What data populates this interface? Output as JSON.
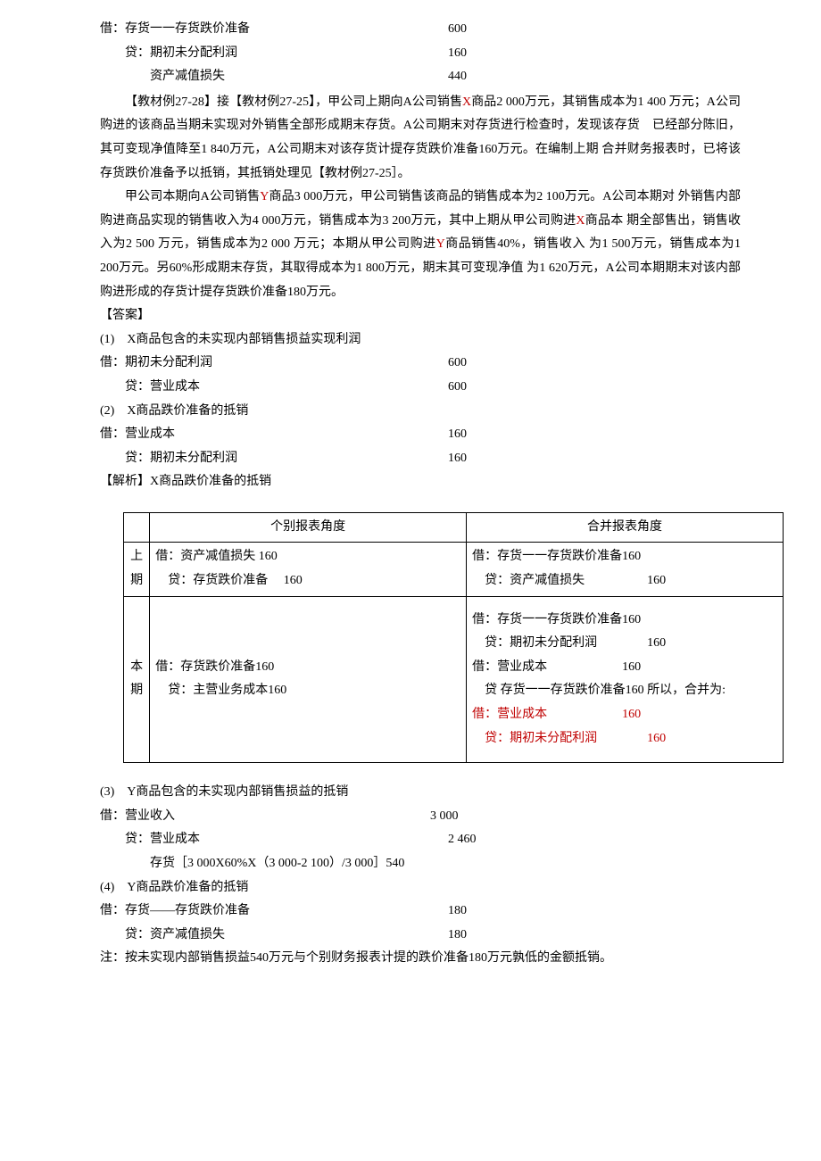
{
  "top_entries": [
    {
      "label": "借：存货一一存货跌价准备",
      "value": "600",
      "indent": 0
    },
    {
      "label": "贷：期初未分配利润",
      "value": "160",
      "indent": 1
    },
    {
      "label": "资产减值损失",
      "value": "440",
      "indent": 2
    }
  ],
  "paragraphs": {
    "p1_prefix": "【教材例27-28】接【教材例27-25】，甲公司上期向A公司销售",
    "p1_x": "X",
    "p1_mid": "商品2 000万元，其销售成本为1 400 万元；A公司购进的该商品当期未实现对外销售全部形成期末存货。A公司期末对存货进行检查时，发现该存货　已经部分陈旧，其可变现净值降至1 840万元，A公司期末对该存货计提存货跌价准备160万元。在编制上期 合并财务报表时，已将该存货跌价准备予以抵销，其抵销处理见【教材例27-25］。",
    "p2_prefix": "甲公司本期向A公司销售",
    "p2_y1": "Y",
    "p2_mid1": "商品3 000万元，甲公司销售该商品的销售成本为2 100万元。A公司本期对 外销售内部购进商品实现的销售收入为4 000万元，销售成本为3 200万元，其中上期从甲公司购进",
    "p2_x": "X",
    "p2_mid2": "商品本 期全部售出，销售收入为2 500 万元，销售成本为2 000 万元；本期从甲公司购进",
    "p2_y2": "Y",
    "p2_tail": "商品销售40%，销售收入 为1 500万元，销售成本为1 200万元。另60%形成期末存货，其取得成本为1 800万元，期末其可变现净值 为1 620万元，A公司本期期末对该内部购进形成的存货计提存货跌价准备180万元。"
  },
  "answer_label": "【答案】",
  "item1_label": "(1)　X商品包含的未实现内部销售损益实现利润",
  "item1_entries": [
    {
      "label": "借：期初未分配利润",
      "value": "600",
      "indent": 0
    },
    {
      "label": "贷：营业成本",
      "value": "600",
      "indent": 1
    }
  ],
  "item2_label": "(2)　X商品跌价准备的抵销",
  "item2_entries": [
    {
      "label": "借：营业成本",
      "value": "160",
      "indent": 0
    },
    {
      "label": "贷：期初未分配利润",
      "value": "160",
      "indent": 1
    }
  ],
  "analysis_label": "【解析】X商品跌价准备的抵销",
  "table": {
    "header_col1": "个别报表角度",
    "header_col2": "合并报表角度",
    "row1_period": "上期",
    "row1_col1_l1": "借：资产减值损失 160",
    "row1_col1_l2": "　贷：存货跌价准备　 160",
    "row1_col2_l1": "借：存货一一存货跌价准备160",
    "row1_col2_l2": "　贷：资产减值损失　　　　　160",
    "row2_period": "本期",
    "row2_col1_l1": "借：存货跌价准备160",
    "row2_col1_l2": "　贷：主营业务成本160",
    "row2_col2_l1": "借：存货一一存货跌价准备160",
    "row2_col2_l2": "　贷：期初未分配利润　　　　160",
    "row2_col2_l3": "借：营业成本　　　　　　160",
    "row2_col2_l4": "　贷 存货一一存货跌价准备160 所以，合并为:",
    "row2_col2_l5": "借：营业成本　　　　　　160",
    "row2_col2_l6": "　贷：期初未分配利润　　　　160"
  },
  "item3_label": "(3)　Y商品包含的未实现内部销售损益的抵销",
  "item3_entries": [
    {
      "label": "借：营业收入",
      "value": "3 000",
      "indent": 0
    },
    {
      "label": "贷：营业成本",
      "value": "2 460",
      "indent": 1
    },
    {
      "label": "存货［3 000X60%X（3 000-2 100）/3 000］540",
      "value": "",
      "indent": 2
    }
  ],
  "item4_label": "(4)　Y商品跌价准备的抵销",
  "item4_entries": [
    {
      "label": "借：存货——存货跌价准备",
      "value": "180",
      "indent": 0
    },
    {
      "label": "贷：资产减值损失",
      "value": "180",
      "indent": 1
    }
  ],
  "note": "注：按未实现内部销售损益540万元与个别财务报表计提的跌价准备180万元孰低的金额抵销。"
}
